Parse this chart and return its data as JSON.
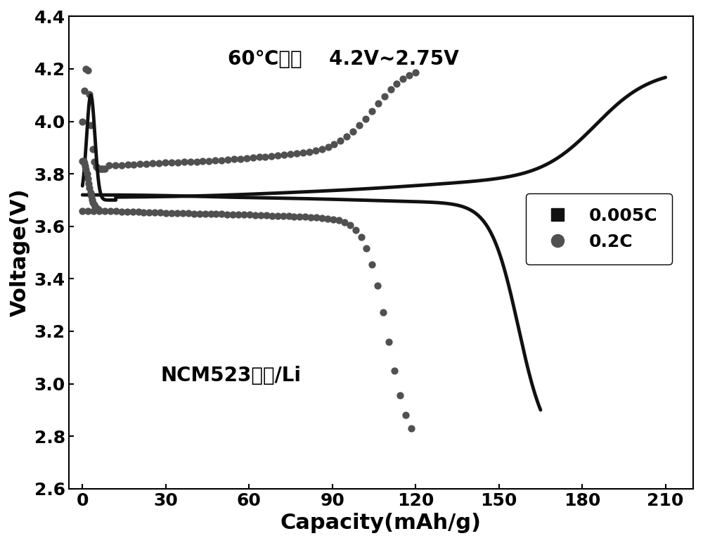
{
  "title": "60℃测试    4.2V~2.75V",
  "annotation": "NCM523涂膜/Li",
  "xlabel": "Capacity(mAh/g)",
  "ylabel": "Voltage(V)",
  "xlim": [
    -5,
    220
  ],
  "ylim": [
    2.6,
    4.4
  ],
  "xticks": [
    0,
    30,
    60,
    90,
    120,
    150,
    180,
    210
  ],
  "yticks": [
    2.6,
    2.8,
    3.0,
    3.2,
    3.4,
    3.6,
    3.8,
    4.0,
    4.2,
    4.4
  ],
  "legend_labels": [
    "0.005C",
    "0.2C"
  ],
  "color_005C": "#111111",
  "color_02C": "#505050",
  "background_color": "#ffffff",
  "title_fontsize": 20,
  "label_fontsize": 22,
  "tick_fontsize": 18,
  "legend_fontsize": 18,
  "annotation_fontsize": 20,
  "linewidth_005C": 3.5
}
